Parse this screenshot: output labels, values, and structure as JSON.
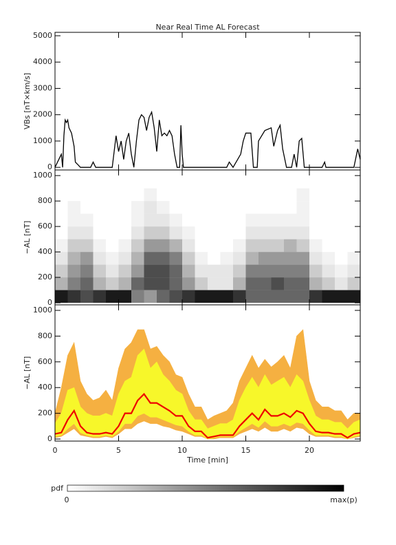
{
  "chart_data": [
    {
      "type": "line",
      "title": "Near Real Time AL Forecast",
      "ylabel": "VBs [nT×km/s]",
      "xlim": [
        0,
        24
      ],
      "xticks": [
        0,
        5,
        10,
        15,
        20
      ],
      "ylim": [
        -100,
        5130
      ],
      "yticks": [
        0,
        1000,
        2000,
        3000,
        4000,
        5000
      ],
      "x": [
        0,
        0.3,
        0.5,
        0.6,
        0.7,
        0.8,
        0.9,
        1.0,
        1.1,
        1.3,
        1.5,
        1.6,
        1.8,
        2.0,
        2.8,
        3.0,
        3.2,
        4.5,
        4.8,
        5.0,
        5.2,
        5.4,
        5.6,
        5.8,
        6.0,
        6.2,
        6.4,
        6.6,
        6.8,
        7.0,
        7.2,
        7.4,
        7.6,
        7.8,
        8.0,
        8.2,
        8.4,
        8.6,
        8.8,
        9.0,
        9.2,
        9.4,
        9.6,
        9.8,
        9.9,
        10.0,
        10.1,
        13.5,
        13.7,
        14.0,
        14.6,
        14.8,
        15.0,
        15.4,
        15.6,
        15.9,
        16.0,
        16.5,
        17.0,
        17.2,
        17.5,
        17.7,
        17.9,
        18.2,
        18.6,
        18.8,
        19.0,
        19.2,
        19.4,
        19.6,
        21.0,
        21.2,
        21.3,
        23.5,
        23.8,
        24
      ],
      "color": "#000000",
      "values": [
        0,
        300,
        500,
        0,
        1200,
        1800,
        1700,
        1800,
        1500,
        1300,
        800,
        200,
        100,
        0,
        0,
        200,
        0,
        0,
        1200,
        600,
        1000,
        300,
        1000,
        1300,
        500,
        0,
        1000,
        1800,
        2000,
        1900,
        1400,
        1900,
        2100,
        1500,
        600,
        1800,
        1200,
        1300,
        1200,
        1400,
        1200,
        500,
        0,
        0,
        1600,
        500,
        0,
        0,
        200,
        0,
        500,
        1000,
        1300,
        1300,
        0,
        0,
        1000,
        1400,
        1500,
        800,
        1400,
        1600,
        700,
        0,
        0,
        500,
        0,
        1000,
        1100,
        0,
        0,
        200,
        0,
        0,
        700,
        300
      ]
    },
    {
      "type": "heatmap",
      "ylabel": "−AL [nT]",
      "xlim": [
        0,
        24
      ],
      "xticks": [
        0,
        5,
        10,
        15,
        20
      ],
      "ylim": [
        -16,
        1044
      ],
      "yticks": [
        0,
        200,
        400,
        600,
        800,
        1000
      ],
      "xbins": [
        0,
        1,
        2,
        3,
        4,
        5,
        6,
        7,
        8,
        9,
        10,
        11,
        12,
        13,
        14,
        15,
        16,
        17,
        18,
        19,
        20,
        21,
        22,
        23,
        24
      ],
      "ybins": [
        0,
        100,
        200,
        300,
        400,
        500,
        600,
        700,
        800,
        900,
        1000
      ],
      "cmap": [
        "#ffffff",
        "#000000"
      ],
      "z": [
        [
          0.9,
          0.8,
          0.7,
          0.8,
          0.9,
          0.9,
          0.5,
          0.4,
          0.6,
          0.7,
          0.8,
          0.9,
          0.9,
          0.9,
          0.8,
          0.6,
          0.6,
          0.6,
          0.6,
          0.6,
          0.8,
          0.9,
          0.9,
          0.9
        ],
        [
          0.3,
          0.5,
          0.6,
          0.3,
          0.2,
          0.3,
          0.6,
          0.7,
          0.7,
          0.6,
          0.4,
          0.2,
          0.1,
          0.1,
          0.3,
          0.6,
          0.6,
          0.7,
          0.6,
          0.6,
          0.3,
          0.2,
          0.1,
          0.2
        ],
        [
          0.2,
          0.4,
          0.5,
          0.2,
          0.1,
          0.2,
          0.4,
          0.7,
          0.7,
          0.6,
          0.3,
          0.1,
          0.1,
          0.1,
          0.2,
          0.5,
          0.5,
          0.5,
          0.5,
          0.5,
          0.2,
          0.1,
          0.05,
          0.1
        ],
        [
          0.1,
          0.3,
          0.4,
          0.1,
          0.05,
          0.1,
          0.3,
          0.6,
          0.6,
          0.5,
          0.2,
          0.05,
          0,
          0.05,
          0.1,
          0.3,
          0.4,
          0.4,
          0.4,
          0.4,
          0.1,
          0.05,
          0,
          0.05
        ],
        [
          0.05,
          0.2,
          0.2,
          0.05,
          0,
          0.05,
          0.2,
          0.4,
          0.4,
          0.3,
          0.1,
          0,
          0,
          0,
          0.05,
          0.2,
          0.2,
          0.2,
          0.3,
          0.2,
          0.05,
          0,
          0,
          0
        ],
        [
          0,
          0.1,
          0.1,
          0,
          0,
          0,
          0.1,
          0.2,
          0.2,
          0.1,
          0.05,
          0,
          0,
          0,
          0,
          0.1,
          0.1,
          0.1,
          0.1,
          0.1,
          0,
          0,
          0,
          0
        ],
        [
          0,
          0.05,
          0.05,
          0,
          0,
          0,
          0.05,
          0.1,
          0.1,
          0.05,
          0,
          0,
          0,
          0,
          0,
          0.05,
          0.05,
          0.05,
          0.05,
          0.05,
          0,
          0,
          0,
          0
        ],
        [
          0,
          0.05,
          0,
          0,
          0,
          0,
          0.05,
          0.1,
          0.05,
          0,
          0,
          0,
          0,
          0,
          0,
          0,
          0,
          0,
          0,
          0.05,
          0,
          0,
          0,
          0
        ],
        [
          0,
          0,
          0,
          0,
          0,
          0,
          0,
          0.05,
          0,
          0,
          0,
          0,
          0,
          0,
          0,
          0,
          0,
          0,
          0,
          0.05,
          0,
          0,
          0,
          0
        ],
        [
          0,
          0,
          0,
          0,
          0,
          0,
          0,
          0,
          0,
          0,
          0,
          0,
          0,
          0,
          0,
          0,
          0,
          0,
          0,
          0,
          0,
          0,
          0,
          0
        ]
      ],
      "colorbar": {
        "label": "pdf",
        "min_label": "0",
        "max_label": "max(p)"
      }
    },
    {
      "type": "band",
      "ylabel": "−AL [nT]",
      "xlabel": "Time [min]",
      "xlim": [
        0,
        24
      ],
      "xticks": [
        0,
        5,
        10,
        15,
        20
      ],
      "ylim": [
        -16,
        1043
      ],
      "yticks": [
        0,
        200,
        400,
        600,
        800,
        1000
      ],
      "x": [
        0,
        0.5,
        1,
        1.5,
        2,
        2.5,
        3,
        3.5,
        4,
        4.5,
        5,
        5.5,
        6,
        6.5,
        7,
        7.5,
        8,
        8.5,
        9,
        9.5,
        10,
        10.5,
        11,
        11.5,
        12,
        12.5,
        13,
        13.5,
        14,
        14.5,
        15,
        15.5,
        16,
        16.5,
        17,
        17.5,
        18,
        18.5,
        19,
        19.5,
        20,
        20.5,
        21,
        21.5,
        22,
        22.5,
        23,
        23.5,
        24
      ],
      "bands": [
        {
          "color": "#f5b041",
          "lower": [
            10,
            20,
            50,
            80,
            30,
            20,
            10,
            10,
            20,
            10,
            40,
            80,
            80,
            120,
            140,
            120,
            120,
            100,
            90,
            70,
            60,
            40,
            20,
            20,
            0,
            0,
            10,
            10,
            10,
            40,
            60,
            80,
            60,
            90,
            60,
            60,
            80,
            60,
            90,
            80,
            40,
            20,
            20,
            20,
            10,
            10,
            0,
            10,
            20
          ],
          "upper": [
            200,
            400,
            650,
            750,
            450,
            350,
            300,
            320,
            380,
            300,
            550,
            700,
            750,
            850,
            850,
            700,
            720,
            650,
            600,
            500,
            480,
            350,
            250,
            250,
            150,
            180,
            200,
            220,
            280,
            450,
            550,
            650,
            550,
            620,
            560,
            600,
            650,
            550,
            800,
            850,
            450,
            300,
            250,
            250,
            220,
            220,
            150,
            200,
            200
          ]
        },
        {
          "color": "#f7f72a",
          "lower": [
            20,
            30,
            80,
            120,
            50,
            30,
            20,
            20,
            30,
            20,
            60,
            120,
            120,
            180,
            200,
            170,
            170,
            150,
            130,
            110,
            100,
            60,
            30,
            30,
            0,
            10,
            20,
            20,
            20,
            60,
            90,
            120,
            90,
            140,
            100,
            100,
            120,
            100,
            130,
            120,
            70,
            30,
            30,
            30,
            20,
            20,
            0,
            20,
            30
          ],
          "upper": [
            120,
            200,
            380,
            400,
            250,
            200,
            180,
            180,
            200,
            180,
            350,
            450,
            480,
            650,
            700,
            550,
            600,
            500,
            450,
            380,
            350,
            220,
            150,
            150,
            80,
            100,
            120,
            120,
            150,
            300,
            400,
            480,
            400,
            500,
            420,
            450,
            480,
            400,
            500,
            450,
            300,
            180,
            150,
            150,
            130,
            130,
            80,
            130,
            150
          ]
        }
      ],
      "series": [
        {
          "color": "#ee0000",
          "values": [
            40,
            50,
            150,
            220,
            100,
            50,
            40,
            40,
            50,
            40,
            100,
            200,
            200,
            300,
            350,
            280,
            280,
            250,
            220,
            180,
            180,
            100,
            60,
            60,
            10,
            20,
            30,
            30,
            30,
            100,
            150,
            200,
            150,
            230,
            180,
            180,
            200,
            170,
            220,
            200,
            120,
            60,
            50,
            50,
            40,
            40,
            10,
            40,
            50
          ]
        }
      ]
    }
  ]
}
